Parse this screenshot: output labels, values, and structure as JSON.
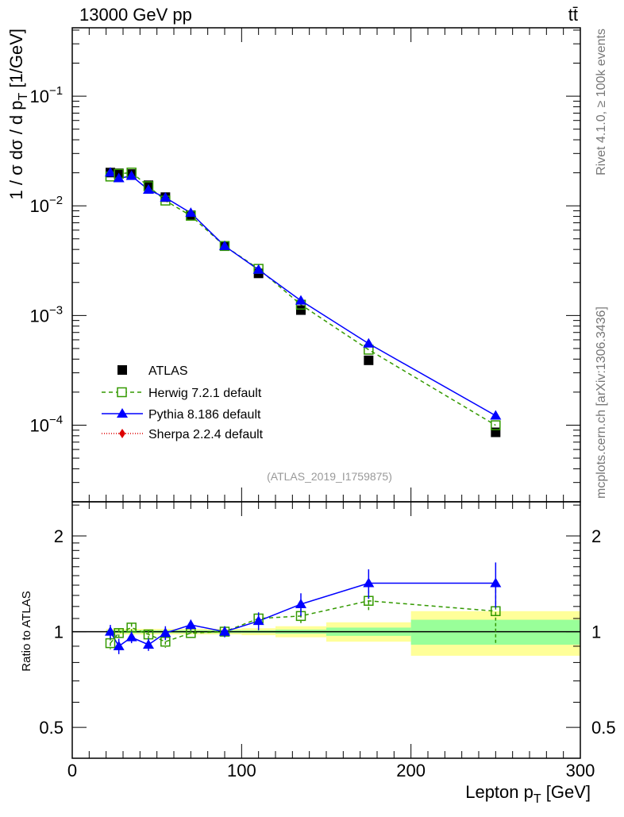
{
  "chart_data": {
    "type": "line",
    "title_left": "13000 GeV pp",
    "title_right": "tt̄",
    "side_label_top": "Rivet 4.1.0, ≥ 100k events",
    "side_label_bottom": "mcplots.cern.ch [arXiv:1306.3436]",
    "analysis_label": "(ATLAS_2019_I1759875)",
    "xlabel": "Lepton p",
    "xlabel_sub": "T",
    "xlabel_unit": " [GeV]",
    "ylabel": "1 / σ  dσ / d p",
    "ylabel_sub": "T",
    "ylabel_unit": " [1/GeV]",
    "ratio_ylabel": "Ratio to ATLAS",
    "xlim": [
      0,
      300
    ],
    "ylim": [
      2e-05,
      0.42
    ],
    "yscale": "log",
    "ratio_ylim": [
      0.4,
      2.56
    ],
    "ratio_yscale": "log",
    "x_ticks": [
      "0",
      "100",
      "200",
      "300"
    ],
    "y_ticks": [
      {
        "v": 0.1,
        "label": "10",
        "exp": "−1"
      },
      {
        "v": 0.01,
        "label": "10",
        "exp": "−2"
      },
      {
        "v": 0.001,
        "label": "10",
        "exp": "−3"
      },
      {
        "v": 0.0001,
        "label": "10",
        "exp": "−4"
      }
    ],
    "ratio_ticks": [
      {
        "v": 2,
        "label": "2"
      },
      {
        "v": 1,
        "label": "1"
      },
      {
        "v": 0.5,
        "label": "0.5"
      }
    ],
    "bins": [
      [
        20,
        25
      ],
      [
        25,
        30
      ],
      [
        30,
        40
      ],
      [
        40,
        50
      ],
      [
        50,
        60
      ],
      [
        60,
        80
      ],
      [
        80,
        100
      ],
      [
        100,
        120
      ],
      [
        120,
        150
      ],
      [
        150,
        200
      ],
      [
        200,
        300
      ]
    ],
    "x": [
      22.5,
      27.5,
      35,
      45,
      55,
      70,
      90,
      110,
      135,
      175,
      250
    ],
    "atlas": [
      0.0201,
      0.0198,
      0.0195,
      0.0154,
      0.012,
      0.0082,
      0.0043,
      0.00242,
      0.00112,
      0.00039,
      8.6e-05
    ],
    "atlas_band_stat": [
      0.01,
      0.01,
      0.01,
      0.01,
      0.01,
      0.01,
      0.01,
      0.01,
      0.015,
      0.03,
      0.09
    ],
    "atlas_band_total": [
      0.02,
      0.02,
      0.02,
      0.02,
      0.02,
      0.02,
      0.02,
      0.025,
      0.04,
      0.07,
      0.16
    ],
    "legend": [
      {
        "name": "ATLAS",
        "color": "#000000"
      },
      {
        "name": "Herwig 7.2.1 default",
        "color": "#339900"
      },
      {
        "name": "Pythia 8.186 default",
        "color": "#0000ff"
      },
      {
        "name": "Sherpa 2.2.4 default",
        "color": "#dd0000"
      }
    ],
    "series": [
      {
        "name": "Herwig 7.2.1 default",
        "ratio": [
          0.92,
          0.99,
          1.03,
          0.98,
          0.93,
          0.99,
          1.0,
          1.1,
          1.12,
          1.25,
          1.16
        ],
        "ratio_err": [
          0.04,
          0.03,
          0.03,
          0.03,
          0.04,
          0.02,
          0.03,
          0.04,
          0.06,
          0.1,
          0.25
        ]
      },
      {
        "name": "Pythia 8.186 default",
        "ratio": [
          1.0,
          0.9,
          0.96,
          0.91,
          0.99,
          1.05,
          1.0,
          1.08,
          1.22,
          1.42,
          1.42
        ],
        "ratio_err": [
          0.05,
          0.05,
          0.04,
          0.04,
          0.05,
          0.04,
          0.04,
          0.07,
          0.1,
          0.15,
          0.23
        ]
      }
    ],
    "colors": {
      "stat_band": "#99ff99",
      "total_band": "#ffff99"
    }
  }
}
